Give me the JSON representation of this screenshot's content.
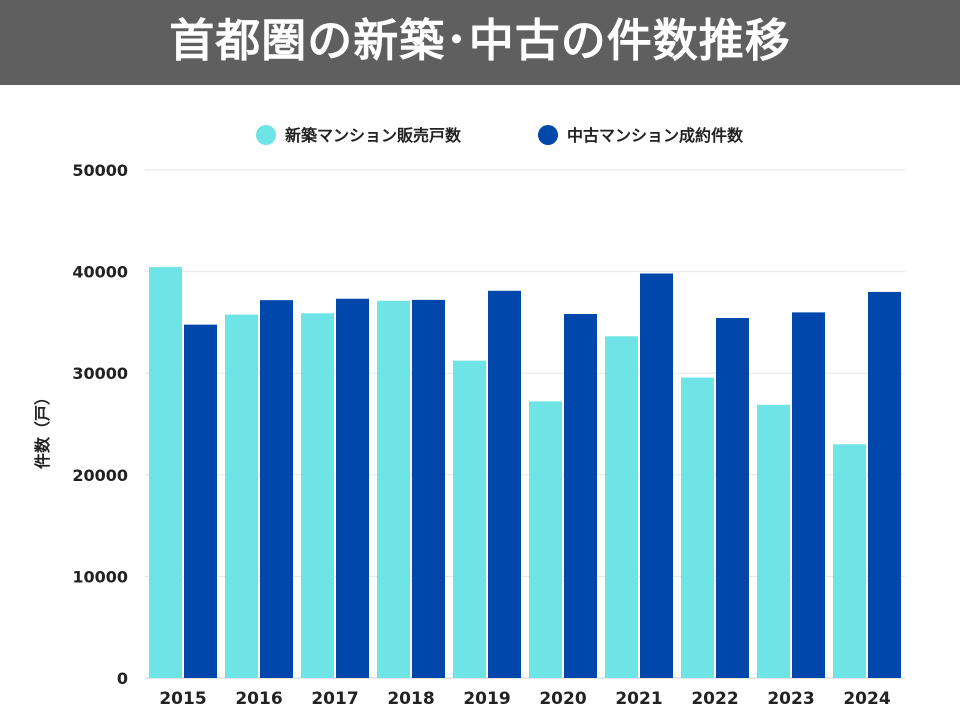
{
  "header": {
    "title": "首都圏の新築･中古の件数推移"
  },
  "colors": {
    "banner_bg": "#5f5f5f",
    "banner_text": "#ffffff",
    "new_series": "#6ee4e6",
    "used_series": "#0047ab",
    "grid": "#e6e6e6",
    "text": "#222222"
  },
  "chart_data": {
    "type": "bar",
    "title": "",
    "xlabel": "",
    "ylabel": "件数（戸）",
    "ylim": [
      0,
      50000
    ],
    "yticks": [
      0,
      10000,
      20000,
      30000,
      40000,
      50000
    ],
    "grid": true,
    "legend_position": "top",
    "categories": [
      "2015",
      "2016",
      "2017",
      "2018",
      "2019",
      "2020",
      "2021",
      "2022",
      "2023",
      "2024"
    ],
    "series": [
      {
        "name": "新築マンション販売戸数",
        "color": "#6ee4e6",
        "values": [
          40449,
          35772,
          35898,
          37132,
          31238,
          27228,
          33636,
          29569,
          26886,
          23003
        ]
      },
      {
        "name": "中古マンション成約件数",
        "color": "#0047ab",
        "values": [
          34776,
          37189,
          37329,
          37217,
          38109,
          35825,
          39812,
          35429,
          35987,
          38000
        ]
      }
    ]
  }
}
